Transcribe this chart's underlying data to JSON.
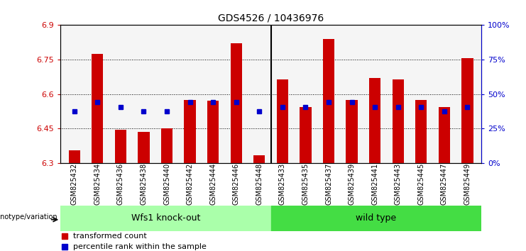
{
  "title": "GDS4526 / 10436976",
  "samples": [
    "GSM825432",
    "GSM825434",
    "GSM825436",
    "GSM825438",
    "GSM825440",
    "GSM825442",
    "GSM825444",
    "GSM825446",
    "GSM825448",
    "GSM825433",
    "GSM825435",
    "GSM825437",
    "GSM825439",
    "GSM825441",
    "GSM825443",
    "GSM825445",
    "GSM825447",
    "GSM825449"
  ],
  "bar_values": [
    6.355,
    6.775,
    6.445,
    6.435,
    6.45,
    6.575,
    6.57,
    6.82,
    6.335,
    6.665,
    6.545,
    6.84,
    6.575,
    6.67,
    6.665,
    6.575,
    6.545,
    6.755
  ],
  "percentile_values": [
    6.525,
    6.565,
    6.545,
    6.525,
    6.525,
    6.565,
    6.565,
    6.565,
    6.525,
    6.545,
    6.545,
    6.565,
    6.565,
    6.545,
    6.545,
    6.545,
    6.525,
    6.545
  ],
  "y_min": 6.3,
  "y_max": 6.9,
  "y_ticks": [
    6.3,
    6.45,
    6.6,
    6.75,
    6.9
  ],
  "right_y_ticks": [
    0,
    25,
    50,
    75,
    100
  ],
  "right_y_labels": [
    "0%",
    "25%",
    "50%",
    "75%",
    "100%"
  ],
  "bar_color": "#cc0000",
  "percentile_color": "#0000cc",
  "group1_label": "Wfs1 knock-out",
  "group2_label": "wild type",
  "group1_color": "#aaffaa",
  "group2_color": "#44dd44",
  "group1_count": 9,
  "group2_count": 9,
  "genotype_label": "genotype/variation",
  "legend_bar": "transformed count",
  "legend_pct": "percentile rank within the sample",
  "bar_width": 0.5,
  "bg_color": "#ffffff"
}
